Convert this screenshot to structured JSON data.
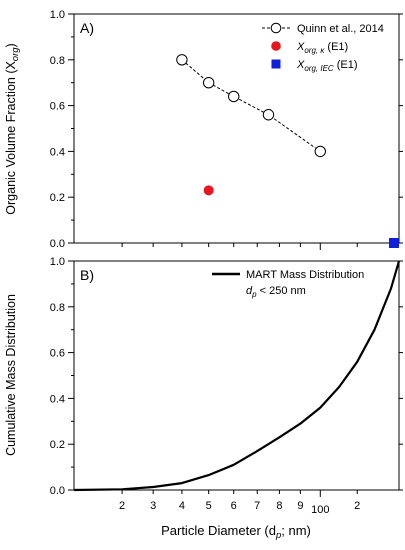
{
  "chart_data": [
    {
      "panel_label": "A)",
      "type": "scatter",
      "ylabel": "Organic Volume Fraction (X",
      "ylabel_sub": "org",
      "ylabel_end": ")",
      "xscale": "log",
      "xlim": [
        106,
        245
      ],
      "ylim": [
        0,
        1.0
      ],
      "yticks": [
        0.0,
        0.2,
        0.4,
        0.6,
        0.8,
        1.0
      ],
      "ytick_labels": [
        "0.0",
        "0.2",
        "0.4",
        "0.6",
        "0.8",
        "1.0"
      ],
      "legend_position": "top-right",
      "series": [
        {
          "name": "Quinn et al., 2014",
          "marker": "open-circle",
          "line": "dashed",
          "color": "#000000",
          "x": [
            140,
            150,
            160,
            175,
            200
          ],
          "y": [
            0.8,
            0.7,
            0.64,
            0.56,
            0.4
          ]
        },
        {
          "name_main": "X",
          "name_sub": "org, κ",
          "name_end": " (E1)",
          "marker": "filled-circle",
          "color": "#e8141e",
          "x": [
            150
          ],
          "y": [
            0.23
          ]
        },
        {
          "name_main": "X",
          "name_sub": "org, IEC",
          "name_end": " (E1)",
          "marker": "filled-square",
          "color": "#1020d8",
          "x": [
            250
          ],
          "y": [
            0.0
          ]
        }
      ]
    },
    {
      "panel_label": "B)",
      "type": "line",
      "ylabel": "Cumulative Mass Distribution",
      "xlabel_main": "Particle Diameter (d",
      "xlabel_sub": "p",
      "xlabel_end": "; nm)",
      "xscale": "log",
      "xlim": [
        106,
        245
      ],
      "ylim": [
        0,
        1.0
      ],
      "yticks": [
        0.0,
        0.2,
        0.4,
        0.6,
        0.8,
        1.0
      ],
      "ytick_labels": [
        "0.0",
        "0.2",
        "0.4",
        "0.6",
        "0.8",
        "1.0"
      ],
      "xticks": [
        120,
        130,
        140,
        150,
        160,
        170,
        180,
        190,
        200,
        220
      ],
      "xtick_labels": [
        "2",
        "3",
        "4",
        "5",
        "6",
        "7",
        "8",
        "9",
        "100",
        "2"
      ],
      "legend_position": "top-right",
      "legend_line1": "MART Mass Distribution",
      "legend_line2_main": "d",
      "legend_line2_sub": "p",
      "legend_line2_end": " < 250 nm",
      "series": [
        {
          "name": "MART Mass Distribution",
          "color": "#000000",
          "x": [
            106,
            120,
            130,
            140,
            150,
            160,
            170,
            180,
            190,
            200,
            210,
            220,
            230,
            240,
            245
          ],
          "y": [
            0.0,
            0.003,
            0.013,
            0.03,
            0.065,
            0.11,
            0.17,
            0.23,
            0.29,
            0.36,
            0.45,
            0.56,
            0.7,
            0.88,
            1.0
          ]
        }
      ]
    }
  ]
}
